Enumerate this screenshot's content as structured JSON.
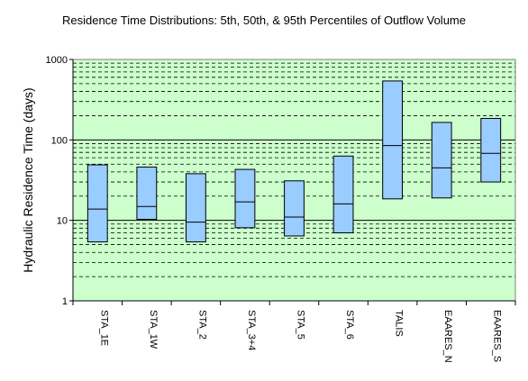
{
  "chart_data": {
    "type": "box",
    "title": "Residence Time Distributions:  5th, 50th, & 95th Percentiles of Outflow Volume",
    "xlabel": "",
    "ylabel": "Hydraulic Residence Time (days)",
    "yscale": "log",
    "ylim": [
      1,
      1000
    ],
    "ytick_labels": [
      "1",
      "10",
      "100",
      "1000"
    ],
    "grid": true,
    "legend": "none",
    "colors": {
      "plot_bg": "#ccffcc",
      "box_fill": "#99ccff",
      "stroke": "#000000"
    },
    "categories": [
      "STA_1E",
      "STA_1W",
      "STA_2",
      "STA_3+4",
      "STA_5",
      "STA_6",
      "TALIS",
      "EAARES_N",
      "EAARES_S"
    ],
    "series": [
      {
        "name": "p5",
        "values": [
          5.4,
          10.3,
          5.4,
          8.1,
          6.4,
          7.0,
          18.5,
          19.0,
          30.0
        ]
      },
      {
        "name": "p50",
        "values": [
          13.8,
          14.9,
          9.5,
          17.0,
          11.0,
          16.0,
          85.0,
          45.0,
          68.0
        ]
      },
      {
        "name": "p95",
        "values": [
          49.0,
          46.0,
          38.0,
          43.0,
          31.0,
          63.0,
          540.0,
          165.0,
          185.0
        ]
      }
    ]
  }
}
